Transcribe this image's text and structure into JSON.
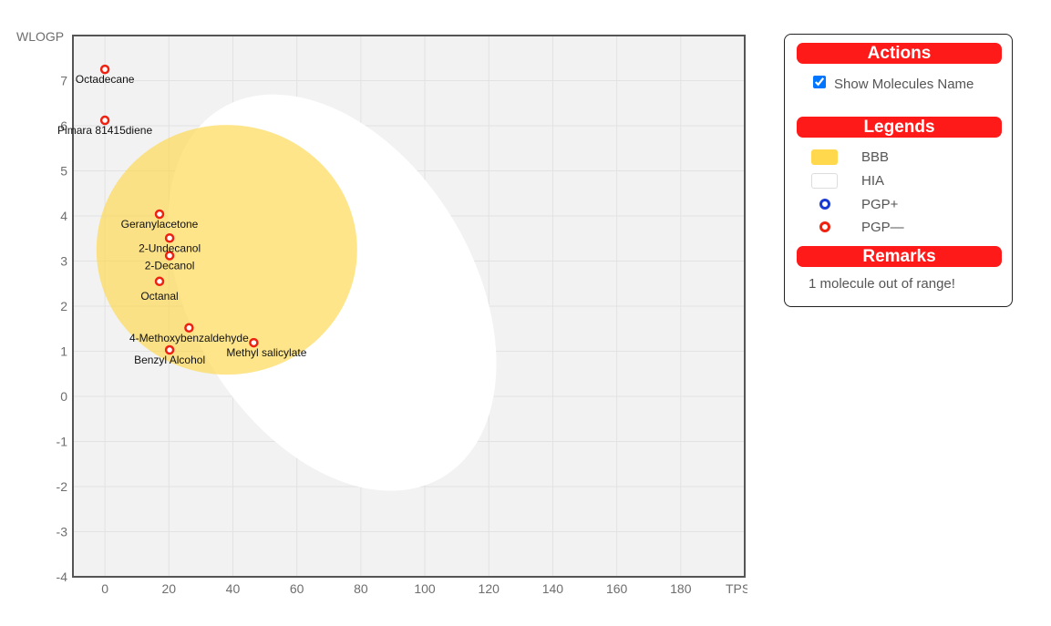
{
  "chart_data": {
    "type": "scatter",
    "xlabel": "TPSA",
    "ylabel": "WLOGP",
    "xlim": [
      -10,
      200
    ],
    "ylim": [
      -4,
      8
    ],
    "x_ticks": [
      0,
      20,
      40,
      60,
      80,
      100,
      120,
      140,
      160,
      180
    ],
    "y_ticks": [
      -4,
      -3,
      -2,
      -1,
      0,
      1,
      2,
      3,
      4,
      5,
      6,
      7
    ],
    "grid": true,
    "regions": [
      {
        "name": "HIA",
        "shape": "ellipse",
        "color": "#ffffff"
      },
      {
        "name": "BBB",
        "shape": "ellipse",
        "color": "#ffd84d"
      }
    ],
    "points": [
      {
        "name": "Octadecane",
        "x": 0,
        "y": 7.25,
        "pgp": "PGP—"
      },
      {
        "name": "Pimara 81415diene",
        "x": 0,
        "y": 6.12,
        "pgp": "PGP—"
      },
      {
        "name": "Geranylacetone",
        "x": 17.07,
        "y": 4.04,
        "pgp": "PGP—"
      },
      {
        "name": "2-Undecanol",
        "x": 20.23,
        "y": 3.51,
        "pgp": "PGP—"
      },
      {
        "name": "2-Decanol",
        "x": 20.23,
        "y": 3.12,
        "pgp": "PGP—"
      },
      {
        "name": "Octanal",
        "x": 17.07,
        "y": 2.55,
        "pgp": "PGP—"
      },
      {
        "name": "4-Methoxybenzaldehyde",
        "x": 26.3,
        "y": 1.52,
        "pgp": "PGP—"
      },
      {
        "name": "Methyl salicylate",
        "x": 46.53,
        "y": 1.19,
        "pgp": "PGP—"
      },
      {
        "name": "Benzyl Alcohol",
        "x": 20.23,
        "y": 1.03,
        "pgp": "PGP—"
      }
    ]
  },
  "colors": {
    "bbb": "#ffd84d",
    "hia": "#ffffff",
    "pgp_plus": "#1a3ad6",
    "pgp_minus": "#ee2211",
    "header": "#ff1a1a",
    "plot_bg": "#f2f2f2"
  },
  "panel": {
    "actions_title": "Actions",
    "show_names_label": "Show Molecules Name",
    "show_names_checked": true,
    "legends_title": "Legends",
    "legend_items": [
      "BBB",
      "HIA",
      "PGP+",
      "PGP—"
    ],
    "remarks_title": "Remarks",
    "remarks_text": "1 molecule out of range!"
  }
}
